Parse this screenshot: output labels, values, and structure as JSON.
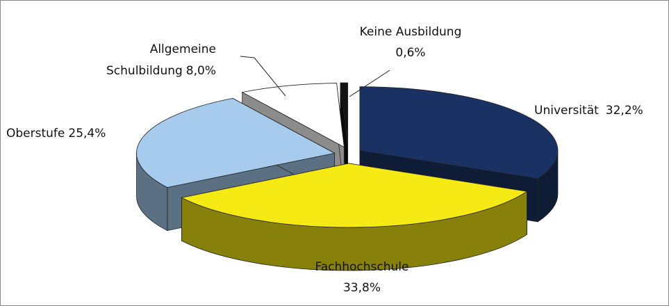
{
  "chart_data": {
    "type": "pie3d",
    "categories": [
      "Universität",
      "Fachhochschule",
      "Oberstufe",
      "Allgemeine Schulbildung",
      "Keine Ausbildung"
    ],
    "values": [
      32.2,
      33.8,
      25.4,
      8.0,
      0.6
    ],
    "value_labels": [
      "32,2%",
      "33,8%",
      "25,4%",
      "8,0%",
      "0,6%"
    ],
    "colors": [
      "#1a3263",
      "#f5ea14",
      "#a6cbec",
      "#ffffff",
      "#111111"
    ]
  }
}
